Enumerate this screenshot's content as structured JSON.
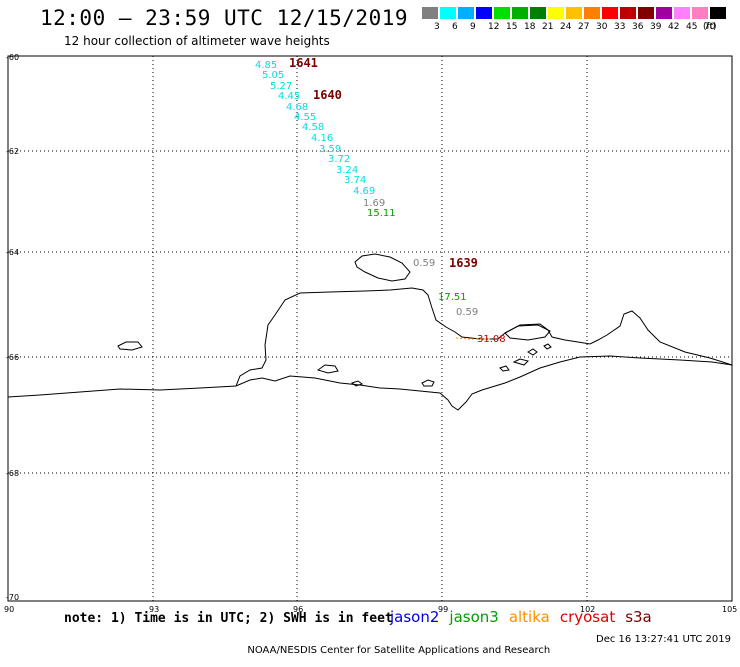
{
  "header": {
    "title": "12:00 – 23:59 UTC 12/15/2019",
    "subtitle": "12 hour collection of altimeter wave heights"
  },
  "legend": {
    "colors": [
      "#808080",
      "#00ffff",
      "#00b0ff",
      "#0000ff",
      "#00e000",
      "#00b000",
      "#008000",
      "#ffff00",
      "#ffc000",
      "#ff8000",
      "#ff0000",
      "#c00000",
      "#800000",
      "#a000a0",
      "#ff80ff",
      "#ff80c0",
      "#000000"
    ],
    "labels": [
      "3",
      "6",
      "9",
      "12",
      "15",
      "18",
      "21",
      "24",
      "27",
      "30",
      "33",
      "36",
      "39",
      "42",
      "45",
      "70",
      "(ft)"
    ]
  },
  "axes": {
    "lat_labels": [
      "-60",
      "-62",
      "-64",
      "-66",
      "-68",
      "-70"
    ],
    "lon_labels": [
      "90",
      "93",
      "96",
      "99",
      "102",
      "105"
    ]
  },
  "tracks": [
    {
      "pass": "1641",
      "points": [
        "4.85",
        "5.05",
        "5.27",
        "4.45",
        "4.68",
        "4.55",
        "4.58",
        "4.16",
        "3.59",
        "3.72",
        "3.24",
        "3.74",
        "4.69"
      ],
      "color": "#00e0e0"
    },
    {
      "pass": "1640",
      "points": [
        "1.69"
      ],
      "color": "#808080"
    },
    {
      "pass": "",
      "points": [
        "15.11"
      ],
      "color": "#00a000"
    }
  ],
  "observations": [
    {
      "pass": "1639",
      "values": [
        {
          "v": "0.59",
          "color": "#808080"
        },
        {
          "v": "17.51",
          "color": "#00a000"
        },
        {
          "v": "0.59",
          "color": "#808080"
        },
        {
          "v": "31.08",
          "color": "#c00000"
        }
      ]
    }
  ],
  "notes": {
    "note": "note: 1) Time is in UTC; 2) SWH is in feet"
  },
  "satellites": [
    {
      "name": "jason2",
      "color": "#0000e0"
    },
    {
      "name": "jason3",
      "color": "#00a000"
    },
    {
      "name": "altika",
      "color": "#ff9000"
    },
    {
      "name": "cryosat",
      "color": "#e00000"
    },
    {
      "name": "s3a",
      "color": "#7a0000"
    }
  ],
  "footer": {
    "credit": "NOAA/NESDIS Center for Satellite Applications and Research",
    "timestamp": "Dec 16 13:27:41 UTC 2019"
  }
}
